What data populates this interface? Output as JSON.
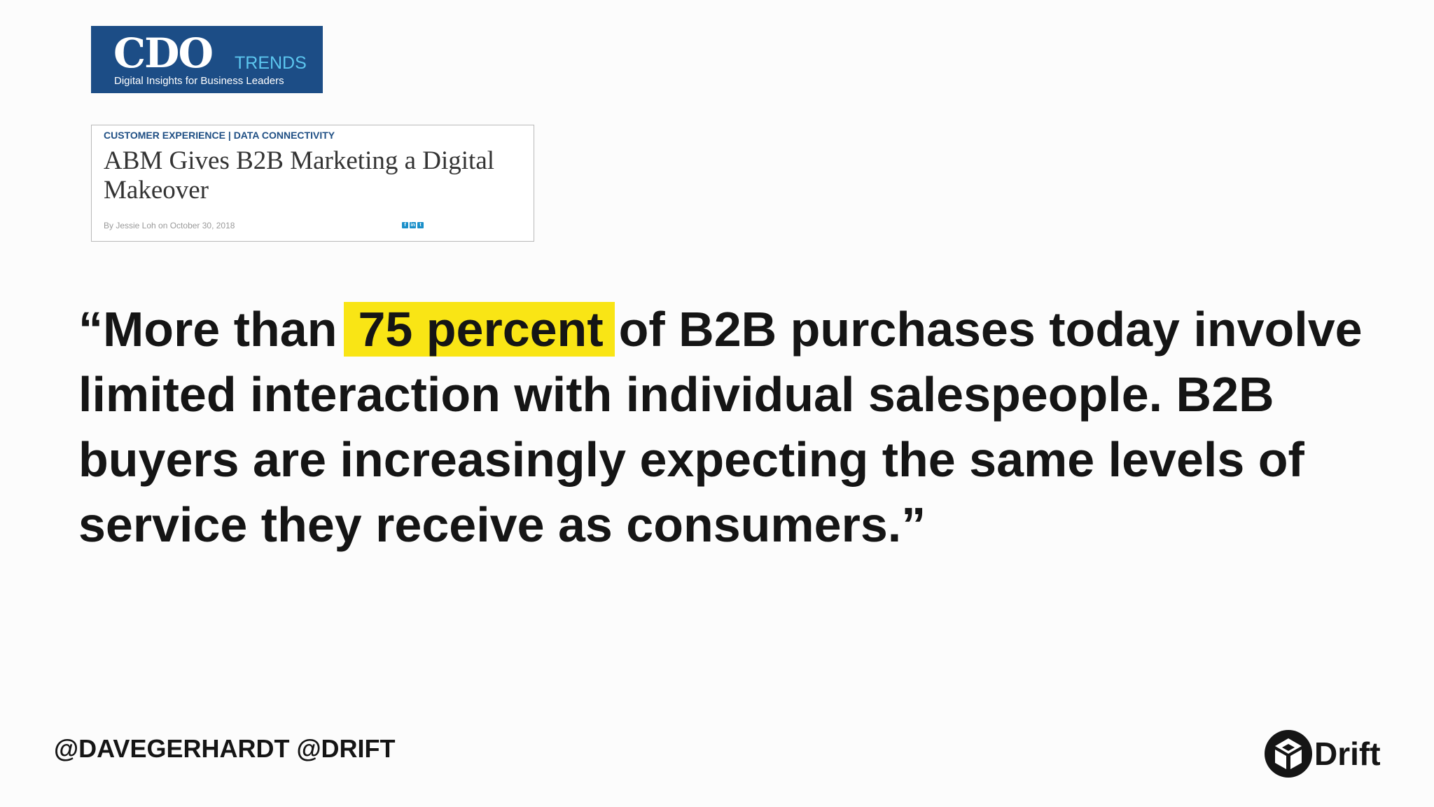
{
  "logo": {
    "main": "CDO",
    "trends": "TRENDS",
    "tagline": "Digital Insights for Business Leaders",
    "colors": {
      "background": "#1c4d86",
      "trends": "#5cc6ef"
    }
  },
  "article": {
    "category": "CUSTOMER EXPERIENCE | DATA CONNECTIVITY",
    "title": "ABM Gives B2B Marketing a Digital Makeover",
    "byline": "By Jessie Loh on October 30, 2018",
    "share_icons": [
      "facebook-icon",
      "linkedin-icon",
      "twitter-icon"
    ]
  },
  "quote": {
    "before": "“More than",
    "highlight": "75 percent",
    "after": "of B2B purchases today involve limited interaction with individual salespeople. B2B buyers are increasingly expecting the same levels of service they receive as consumers.”",
    "highlight_color": "#f9e515"
  },
  "footer": {
    "handles": "@DAVEGERHARDT @DRIFT",
    "brand": "Drift"
  }
}
